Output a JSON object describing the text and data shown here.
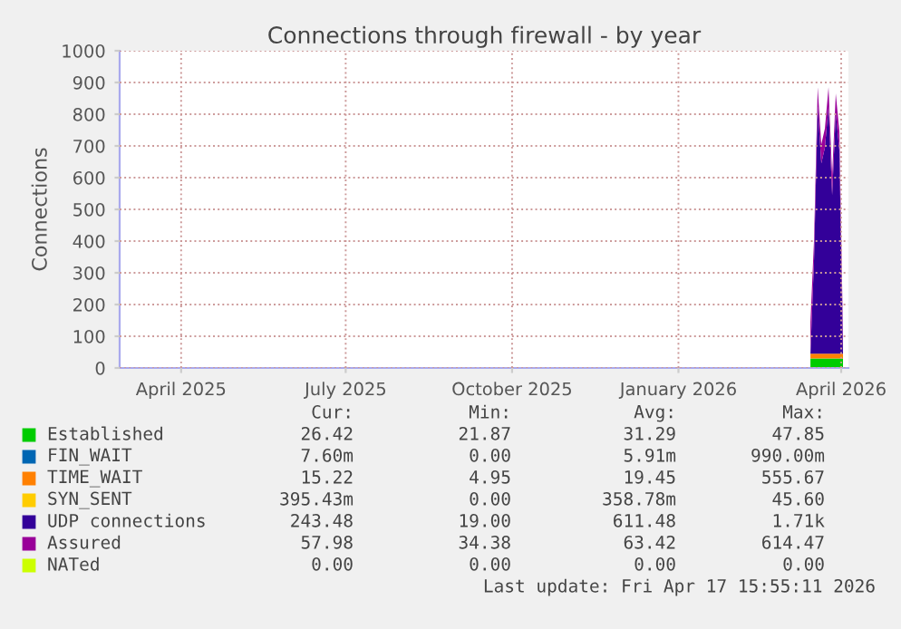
{
  "chart_data": {
    "type": "area",
    "stacked": true,
    "title": "Connections through firewall - by year",
    "ylabel": "Connections",
    "x": [
      "2026-03-15",
      "2026-03-17",
      "2026-03-19",
      "2026-03-21",
      "2026-03-23",
      "2026-03-25",
      "2026-03-27",
      "2026-03-29",
      "2026-03-31",
      "2026-04-02"
    ],
    "series": [
      {
        "name": "Established",
        "color": "#00cc00",
        "values": [
          30,
          30,
          30,
          30,
          30,
          30,
          30,
          30,
          30,
          30
        ]
      },
      {
        "name": "FIN_WAIT",
        "color": "#0066b3",
        "values": [
          null,
          null,
          null,
          null,
          null,
          null,
          null,
          null,
          null,
          null
        ]
      },
      {
        "name": "TIME_WAIT",
        "color": "#ff8000",
        "values": [
          15,
          15,
          15,
          15,
          15,
          15,
          15,
          15,
          15,
          15
        ]
      },
      {
        "name": "SYN_SENT",
        "color": "#ffcc00",
        "values": [
          null,
          null,
          null,
          null,
          null,
          null,
          null,
          null,
          null,
          null
        ]
      },
      {
        "name": "UDP connections",
        "color": "#330099",
        "values": [
          0,
          300,
          780,
          600,
          650,
          780,
          500,
          760,
          640,
          0
        ]
      },
      {
        "name": "Assured",
        "color": "#990099",
        "values": [
          100,
          60,
          60,
          60,
          60,
          60,
          60,
          60,
          60,
          60
        ]
      },
      {
        "name": "NATed",
        "color": "#ccff00",
        "values": [
          null,
          null,
          null,
          null,
          null,
          null,
          null,
          null,
          null,
          null
        ]
      }
    ],
    "xlim": [
      "2025-02-26",
      "2026-04-05"
    ],
    "xticks": [
      {
        "value": "2025-04-01",
        "label": "April 2025"
      },
      {
        "value": "2025-07-01",
        "label": "July 2025"
      },
      {
        "value": "2025-10-01",
        "label": "October 2025"
      },
      {
        "value": "2026-01-01",
        "label": "January 2026"
      },
      {
        "value": "2026-04-01",
        "label": "April 2026"
      }
    ],
    "ylim": [
      0,
      1000
    ],
    "yticks": [
      0,
      100,
      200,
      300,
      400,
      500,
      600,
      700,
      800,
      900,
      1000
    ],
    "grid": true,
    "legend": "bottom",
    "annotations": [
      "Cur:",
      "Min:",
      "Avg:",
      "Max:",
      "26.42",
      "21.87",
      "31.29",
      "47.85",
      "7.60m",
      "0.00",
      "5.91m",
      "990.00m",
      "15.22",
      "4.95",
      "19.45",
      "555.67",
      "395.43m",
      "0.00",
      "358.78m",
      "45.60",
      "243.48",
      "19.00",
      "611.48",
      "1.71k",
      "57.98",
      "34.38",
      "63.42",
      "614.47",
      "0.00",
      "0.00",
      "0.00",
      "0.00",
      "Last update: Fri Apr 17 15:55:11 2026"
    ]
  }
}
